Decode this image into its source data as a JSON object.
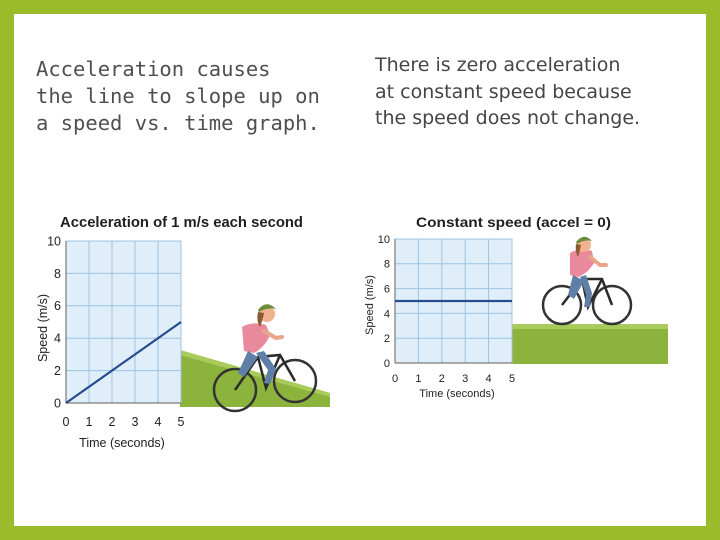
{
  "slide": {
    "left_text": "Acceleration causes\nthe line to slope up on\na speed vs. time graph.",
    "right_text": "There is zero acceleration\nat constant speed because\nthe speed does not change."
  },
  "colors": {
    "frame": "#9bbb2a",
    "grid_fill": "#dfeef9",
    "grid_line": "#9cc4e4",
    "data_line": "#264b8f",
    "ground": "#8cb43c",
    "shirt": "#e8899c",
    "jeans": "#5f7ea8"
  },
  "icons": [
    "cyclist-illustration",
    "cyclist-illustration"
  ],
  "chart_data": [
    {
      "type": "line",
      "title": "Acceleration of 1 m/s each second",
      "xlabel": "Time (seconds)",
      "ylabel": "Speed (m/s)",
      "x_ticks": [
        "0",
        "1",
        "2",
        "3",
        "4",
        "5"
      ],
      "y_ticks": [
        "0",
        "2",
        "4",
        "6",
        "8",
        "10"
      ],
      "xlim": [
        0,
        5
      ],
      "ylim": [
        0,
        10
      ],
      "grid": true,
      "series": [
        {
          "x": [
            0,
            5
          ],
          "y": [
            0,
            5
          ]
        }
      ]
    },
    {
      "type": "line",
      "title": "Constant speed (accel = 0)",
      "xlabel": "Time (seconds)",
      "ylabel": "Speed (m/s)",
      "x_ticks": [
        "0",
        "1",
        "2",
        "3",
        "4",
        "5"
      ],
      "y_ticks": [
        "0",
        "2",
        "4",
        "6",
        "8",
        "10"
      ],
      "xlim": [
        0,
        5
      ],
      "ylim": [
        0,
        10
      ],
      "grid": true,
      "series": [
        {
          "x": [
            0,
            5
          ],
          "y": [
            5,
            5
          ]
        }
      ]
    }
  ]
}
